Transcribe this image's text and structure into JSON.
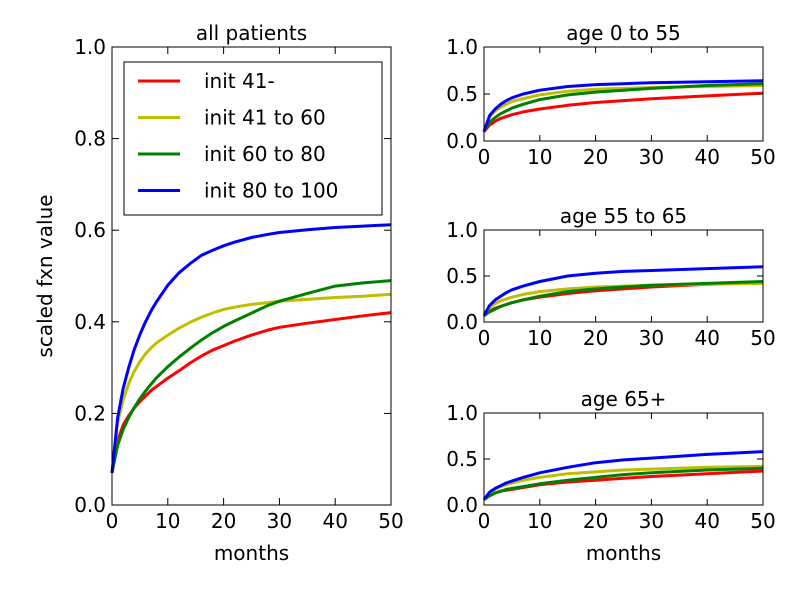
{
  "chart_data": [
    {
      "type": "line",
      "title": "all patients",
      "xlabel": "months",
      "ylabel": "scaled fxn value",
      "xlim": [
        0,
        50
      ],
      "ylim": [
        0,
        1.0
      ],
      "xticks": [
        "0",
        "10",
        "20",
        "30",
        "40",
        "50"
      ],
      "yticks": [
        "0.0",
        "0.2",
        "0.4",
        "0.6",
        "0.8",
        "1.0"
      ],
      "legend_position": "top",
      "x": [
        0,
        1,
        2,
        3,
        4,
        5,
        6,
        7,
        8,
        10,
        12,
        14,
        16,
        18,
        20,
        22,
        25,
        28,
        30,
        35,
        40,
        45,
        50
      ],
      "series": [
        {
          "name": "init 41-",
          "color": "#ff0000",
          "values": [
            0.07,
            0.14,
            0.175,
            0.195,
            0.212,
            0.226,
            0.238,
            0.25,
            0.259,
            0.277,
            0.293,
            0.31,
            0.325,
            0.338,
            0.348,
            0.358,
            0.371,
            0.382,
            0.388,
            0.397,
            0.405,
            0.413,
            0.42
          ]
        },
        {
          "name": "init 41 to 60",
          "color": "#bfbf00",
          "values": [
            0.07,
            0.18,
            0.23,
            0.265,
            0.292,
            0.313,
            0.33,
            0.343,
            0.354,
            0.371,
            0.386,
            0.399,
            0.41,
            0.419,
            0.427,
            0.432,
            0.438,
            0.442,
            0.445,
            0.449,
            0.453,
            0.456,
            0.46
          ]
        },
        {
          "name": "init 60 to 80",
          "color": "#008000",
          "values": [
            0.07,
            0.13,
            0.165,
            0.191,
            0.213,
            0.232,
            0.249,
            0.264,
            0.278,
            0.302,
            0.323,
            0.342,
            0.36,
            0.376,
            0.39,
            0.402,
            0.419,
            0.436,
            0.445,
            0.462,
            0.478,
            0.485,
            0.49
          ]
        },
        {
          "name": "init 80 to 100",
          "color": "#0000ff",
          "values": [
            0.07,
            0.19,
            0.255,
            0.3,
            0.34,
            0.372,
            0.4,
            0.424,
            0.444,
            0.48,
            0.507,
            0.527,
            0.545,
            0.556,
            0.566,
            0.574,
            0.584,
            0.591,
            0.595,
            0.601,
            0.606,
            0.609,
            0.612
          ]
        }
      ]
    },
    {
      "type": "line",
      "title": "age 0 to 55",
      "xlabel": "",
      "ylabel": "",
      "xlim": [
        0,
        50
      ],
      "ylim": [
        0,
        1.0
      ],
      "xticks": [
        "0",
        "10",
        "20",
        "30",
        "40",
        "50"
      ],
      "yticks": [
        "0.0",
        "0.5",
        "1.0"
      ],
      "x": [
        0,
        1,
        2,
        3,
        4,
        5,
        7,
        10,
        15,
        20,
        25,
        30,
        40,
        50
      ],
      "series": [
        {
          "color": "#ff0000",
          "values": [
            0.1,
            0.17,
            0.21,
            0.24,
            0.26,
            0.28,
            0.31,
            0.34,
            0.38,
            0.41,
            0.43,
            0.45,
            0.48,
            0.51
          ]
        },
        {
          "color": "#bfbf00",
          "values": [
            0.1,
            0.26,
            0.32,
            0.36,
            0.39,
            0.42,
            0.45,
            0.49,
            0.53,
            0.55,
            0.56,
            0.57,
            0.58,
            0.59
          ]
        },
        {
          "color": "#008000",
          "values": [
            0.1,
            0.2,
            0.25,
            0.29,
            0.32,
            0.35,
            0.39,
            0.44,
            0.49,
            0.52,
            0.54,
            0.56,
            0.59,
            0.61
          ]
        },
        {
          "color": "#0000ff",
          "values": [
            0.1,
            0.27,
            0.34,
            0.39,
            0.43,
            0.46,
            0.5,
            0.54,
            0.58,
            0.6,
            0.61,
            0.62,
            0.63,
            0.64
          ]
        }
      ]
    },
    {
      "type": "line",
      "title": "age 55 to 65",
      "xlabel": "",
      "ylabel": "",
      "xlim": [
        0,
        50
      ],
      "ylim": [
        0,
        1.0
      ],
      "xticks": [
        "0",
        "10",
        "20",
        "30",
        "40",
        "50"
      ],
      "yticks": [
        "0.0",
        "0.5",
        "1.0"
      ],
      "x": [
        0,
        1,
        2,
        3,
        4,
        5,
        7,
        10,
        15,
        20,
        25,
        30,
        40,
        50
      ],
      "series": [
        {
          "color": "#ff0000",
          "values": [
            0.07,
            0.12,
            0.15,
            0.17,
            0.19,
            0.21,
            0.24,
            0.27,
            0.31,
            0.34,
            0.36,
            0.38,
            0.41,
            0.43
          ]
        },
        {
          "color": "#bfbf00",
          "values": [
            0.07,
            0.16,
            0.2,
            0.23,
            0.25,
            0.27,
            0.3,
            0.33,
            0.36,
            0.38,
            0.39,
            0.4,
            0.41,
            0.42
          ]
        },
        {
          "color": "#008000",
          "values": [
            0.07,
            0.11,
            0.14,
            0.17,
            0.19,
            0.21,
            0.24,
            0.28,
            0.33,
            0.36,
            0.38,
            0.4,
            0.42,
            0.44
          ]
        },
        {
          "color": "#0000ff",
          "values": [
            0.07,
            0.18,
            0.24,
            0.28,
            0.32,
            0.35,
            0.39,
            0.44,
            0.5,
            0.53,
            0.55,
            0.56,
            0.58,
            0.6
          ]
        }
      ]
    },
    {
      "type": "line",
      "title": "age 65+",
      "xlabel": "months",
      "ylabel": "",
      "xlim": [
        0,
        50
      ],
      "ylim": [
        0,
        1.0
      ],
      "xticks": [
        "0",
        "10",
        "20",
        "30",
        "40",
        "50"
      ],
      "yticks": [
        "0.0",
        "0.5",
        "1.0"
      ],
      "x": [
        0,
        1,
        2,
        3,
        4,
        5,
        7,
        10,
        15,
        20,
        25,
        30,
        40,
        50
      ],
      "series": [
        {
          "color": "#ff0000",
          "values": [
            0.06,
            0.1,
            0.13,
            0.15,
            0.16,
            0.17,
            0.19,
            0.22,
            0.25,
            0.27,
            0.29,
            0.31,
            0.34,
            0.37
          ]
        },
        {
          "color": "#bfbf00",
          "values": [
            0.06,
            0.13,
            0.17,
            0.2,
            0.22,
            0.24,
            0.27,
            0.3,
            0.34,
            0.36,
            0.38,
            0.39,
            0.41,
            0.42
          ]
        },
        {
          "color": "#008000",
          "values": [
            0.06,
            0.1,
            0.13,
            0.15,
            0.17,
            0.18,
            0.2,
            0.23,
            0.27,
            0.3,
            0.33,
            0.35,
            0.38,
            0.4
          ]
        },
        {
          "color": "#0000ff",
          "values": [
            0.06,
            0.14,
            0.18,
            0.21,
            0.24,
            0.26,
            0.3,
            0.35,
            0.41,
            0.46,
            0.49,
            0.51,
            0.55,
            0.58
          ]
        }
      ]
    }
  ]
}
